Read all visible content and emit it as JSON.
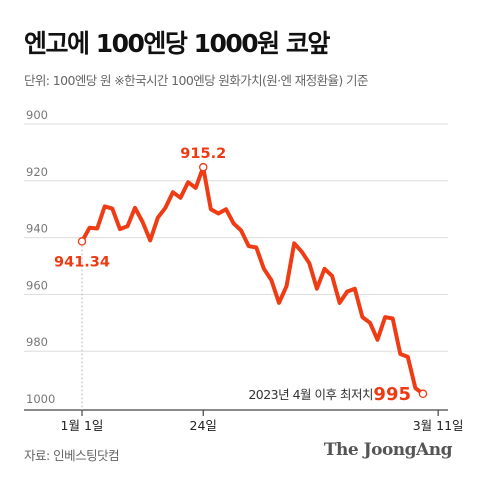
{
  "title": "엔고에 100엔당 1000원 코앞",
  "subtitle": "단위: 100엔당 원  ※한국시간 100엔당 원화가치(원·엔 재정환율) 기준",
  "source": "자료: 인베스팅닷컴",
  "brand": "The JoongAng",
  "colors": {
    "line": "#f03c14",
    "highlight": "#ee3a12",
    "grid": "#dddddd",
    "text": "#111111"
  },
  "chart_data": {
    "type": "line",
    "title": "엔고에 100엔당 1000원 코앞",
    "subtitle": "단위: 100엔당 원  ※한국시간 100엔당 원화가치(원·엔 재정환율) 기준",
    "xlabel": "",
    "ylabel": "",
    "y_inverted": true,
    "ylim": [
      900,
      1000
    ],
    "y_ticks": [
      "900",
      "920",
      "940",
      "960",
      "980",
      "1000"
    ],
    "x_ticks": [
      {
        "label": "1월 1일",
        "index": 0
      },
      {
        "label": "24일",
        "index": 16
      },
      {
        "label": "3월 11일",
        "index": 47
      }
    ],
    "grid": true,
    "series": [
      {
        "name": "",
        "values": [
          941.34,
          936.5,
          936.8,
          929.0,
          929.8,
          937.0,
          936.0,
          929.5,
          934.5,
          941.0,
          933.0,
          929.5,
          924.0,
          926.0,
          920.5,
          922.5,
          915.2,
          930.0,
          931.5,
          930.0,
          935.0,
          937.5,
          943.0,
          943.5,
          951.0,
          955.0,
          963.0,
          957.0,
          942.0,
          945.0,
          949.0,
          958.0,
          951.0,
          953.5,
          963.0,
          959.0,
          958.0,
          968.0,
          970.0,
          976.0,
          968.0,
          968.5,
          981.0,
          982.0,
          993.0,
          995.0
        ]
      }
    ],
    "annotations": [
      {
        "text": "915.2",
        "point_index": 16,
        "value": 915.2
      },
      {
        "text": "941.34",
        "point_index": 0,
        "value": 941.34
      },
      {
        "text": "2023년 4월 이후 최저치",
        "point_index": 45
      },
      {
        "text": "995",
        "point_index": 45,
        "value": 995
      }
    ]
  }
}
